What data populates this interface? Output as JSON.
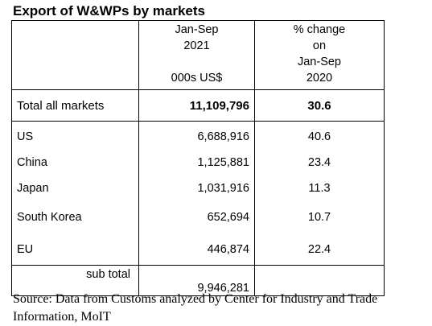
{
  "title": "Export of W&WPs by markets",
  "header": {
    "col2_line1": "Jan-Sep",
    "col2_line2": "2021",
    "col2_unit": "000s US$",
    "col3_line1": "% change",
    "col3_line2": "on",
    "col3_line3": "Jan-Sep",
    "col3_line4": "2020"
  },
  "total": {
    "label": "Total all markets",
    "value": "11,109,796",
    "change": "30.6"
  },
  "rows": [
    {
      "market": "US",
      "value": "6,688,916",
      "change": "40.6"
    },
    {
      "market": "China",
      "value": "1,125,881",
      "change": "23.4"
    },
    {
      "market": "Japan",
      "value": "1,031,916",
      "change": "11.3"
    },
    {
      "market": "South Korea",
      "value": "652,694",
      "change": "10.7"
    },
    {
      "market": "EU",
      "value": "446,874",
      "change": "22.4"
    }
  ],
  "subtotal": {
    "label": "sub total",
    "value": "9,946,281",
    "change": ""
  },
  "source": "Source: Data from Customs analyzed by Center for Industry and Trade Information, MoIT"
}
